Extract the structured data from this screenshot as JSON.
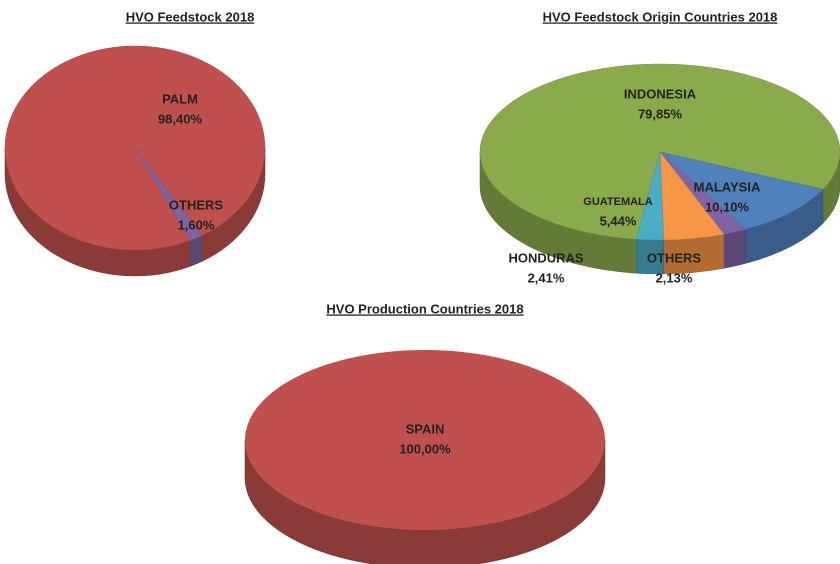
{
  "chart_data": [
    {
      "type": "pie",
      "title": "HVO Feedstock 2018",
      "categories": [
        "PALM",
        "OTHERS"
      ],
      "values": [
        98.4,
        1.6
      ],
      "value_labels": [
        "98,40%",
        "1,60%"
      ],
      "colors": [
        "#c0504d",
        "#8064a2"
      ]
    },
    {
      "type": "pie",
      "title": "HVO Feedstock Origin Countries 2018",
      "categories": [
        "INDONESIA",
        "MALAYSIA",
        "OTHERS",
        "GUATEMALA",
        "HONDURAS"
      ],
      "values": [
        79.85,
        10.1,
        2.13,
        5.44,
        2.41
      ],
      "value_labels": [
        "79,85%",
        "10,10%",
        "2,13%",
        "5,44%",
        "2,41%"
      ],
      "colors": [
        "#8aab4b",
        "#4f81bd",
        "#8064a2",
        "#f79646",
        "#4bacc6"
      ]
    },
    {
      "type": "pie",
      "title": "HVO Production Countries 2018",
      "categories": [
        "SPAIN"
      ],
      "values": [
        100.0
      ],
      "value_labels": [
        "100,00%"
      ],
      "colors": [
        "#c0504d"
      ]
    }
  ]
}
